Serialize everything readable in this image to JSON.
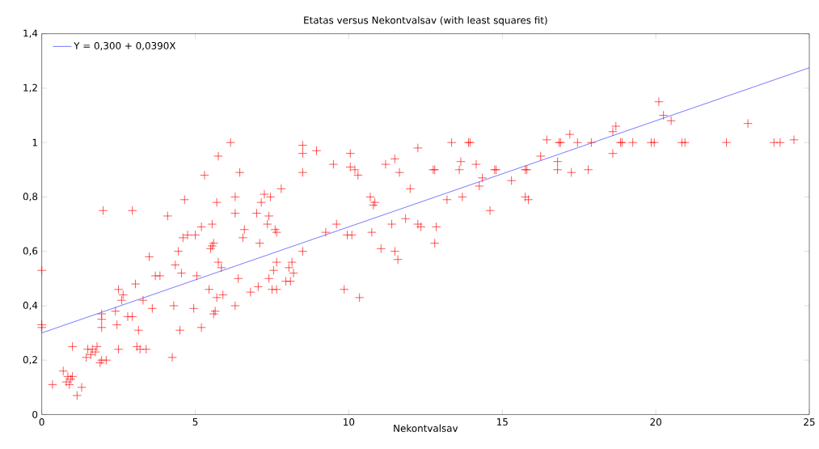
{
  "chart_data": {
    "type": "scatter",
    "title": "Etatas versus Nekontvalsav (with least squares fit)",
    "xlabel": "Nekontvalsav",
    "xlim": [
      0,
      25
    ],
    "ylim": [
      0,
      1.4
    ],
    "xticks": [
      0,
      5,
      10,
      15,
      20,
      25
    ],
    "yticks": [
      {
        "value": 0,
        "label": "0"
      },
      {
        "value": 0.2,
        "label": "0,2"
      },
      {
        "value": 0.4,
        "label": "0,4"
      },
      {
        "value": 0.6,
        "label": "0,6"
      },
      {
        "value": 0.8,
        "label": "0,8"
      },
      {
        "value": 1,
        "label": "1"
      },
      {
        "value": 1.2,
        "label": "1,2"
      },
      {
        "value": 1.4,
        "label": "1,4"
      }
    ],
    "grid": false,
    "legend": "top left",
    "series": [
      {
        "color": "#ff0000",
        "marker": "cross",
        "x": [
          0,
          0,
          0,
          0.35,
          0.7,
          0.8,
          0.85,
          0.9,
          0.95,
          1.0,
          1.0,
          1.15,
          1.3,
          1.45,
          1.5,
          1.6,
          1.65,
          1.75,
          1.8,
          1.9,
          1.95,
          1.95,
          1.95,
          1.95,
          2.0,
          2.1,
          2.5,
          2.45,
          2.4,
          2.5,
          2.6,
          2.65,
          2.8,
          2.95,
          2.95,
          3.05,
          3.1,
          3.15,
          3.2,
          3.4,
          3.3,
          3.5,
          3.6,
          3.7,
          3.85,
          4.1,
          4.25,
          4.3,
          4.35,
          4.45,
          4.5,
          4.55,
          4.6,
          4.65,
          4.75,
          4.95,
          5.0,
          5.05,
          5.2,
          5.2,
          5.3,
          5.45,
          5.5,
          5.55,
          5.55,
          5.6,
          5.6,
          5.65,
          5.7,
          5.7,
          5.75,
          5.75,
          5.85,
          5.9,
          6.15,
          6.3,
          6.3,
          6.3,
          6.4,
          6.45,
          6.55,
          6.6,
          6.8,
          7.0,
          7.05,
          7.1,
          7.15,
          7.25,
          7.35,
          7.4,
          7.4,
          7.45,
          7.5,
          7.55,
          7.6,
          7.65,
          7.65,
          7.65,
          7.8,
          7.95,
          8.05,
          8.1,
          8.15,
          8.2,
          8.5,
          8.5,
          8.5,
          8.5,
          8.95,
          9.25,
          9.5,
          9.6,
          9.85,
          9.95,
          10.05,
          10.05,
          10.1,
          10.2,
          10.3,
          10.35,
          10.7,
          10.75,
          10.8,
          10.85,
          11.05,
          11.2,
          11.4,
          11.5,
          11.5,
          11.6,
          11.65,
          11.85,
          12.0,
          12.25,
          12.25,
          12.35,
          12.75,
          12.8,
          12.8,
          12.85,
          13.2,
          13.35,
          13.6,
          13.65,
          13.7,
          13.9,
          13.95,
          14.15,
          14.25,
          14.35,
          14.6,
          14.75,
          14.8,
          15.3,
          15.75,
          15.75,
          15.8,
          15.85,
          16.25,
          16.45,
          16.8,
          16.8,
          16.85,
          16.9,
          17.2,
          17.25,
          17.45,
          17.8,
          17.9,
          18.6,
          18.6,
          18.7,
          18.85,
          18.9,
          19.25,
          19.85,
          19.95,
          20.1,
          20.25,
          20.5,
          20.85,
          20.95,
          22.3,
          23.0,
          23.85,
          24.05,
          24.5
        ],
        "values": [
          0.53,
          0.33,
          0.32,
          0.11,
          0.16,
          0.12,
          0.14,
          0.11,
          0.13,
          0.14,
          0.25,
          0.07,
          0.1,
          0.21,
          0.24,
          0.22,
          0.24,
          0.23,
          0.25,
          0.19,
          0.2,
          0.32,
          0.35,
          0.37,
          0.75,
          0.2,
          0.24,
          0.33,
          0.38,
          0.46,
          0.42,
          0.44,
          0.36,
          0.36,
          0.75,
          0.48,
          0.25,
          0.31,
          0.24,
          0.24,
          0.42,
          0.58,
          0.39,
          0.51,
          0.51,
          0.73,
          0.21,
          0.4,
          0.55,
          0.6,
          0.31,
          0.52,
          0.65,
          0.79,
          0.66,
          0.39,
          0.66,
          0.51,
          0.69,
          0.32,
          0.88,
          0.46,
          0.61,
          0.62,
          0.7,
          0.37,
          0.63,
          0.38,
          0.43,
          0.78,
          0.95,
          0.56,
          0.54,
          0.44,
          1.0,
          0.8,
          0.74,
          0.4,
          0.5,
          0.89,
          0.65,
          0.68,
          0.45,
          0.74,
          0.47,
          0.63,
          0.78,
          0.81,
          0.7,
          0.73,
          0.5,
          0.8,
          0.46,
          0.53,
          0.68,
          0.67,
          0.56,
          0.46,
          0.83,
          0.49,
          0.54,
          0.49,
          0.56,
          0.52,
          0.89,
          0.96,
          0.99,
          0.6,
          0.97,
          0.67,
          0.92,
          0.7,
          0.46,
          0.66,
          0.91,
          0.96,
          0.66,
          0.9,
          0.88,
          0.43,
          0.8,
          0.67,
          0.77,
          0.78,
          0.61,
          0.92,
          0.7,
          0.94,
          0.6,
          0.57,
          0.89,
          0.72,
          0.83,
          0.98,
          0.7,
          0.69,
          0.9,
          0.9,
          0.63,
          0.69,
          0.79,
          1.0,
          0.9,
          0.93,
          0.8,
          1.0,
          1.0,
          0.92,
          0.84,
          0.87,
          0.75,
          0.9,
          0.9,
          0.86,
          0.8,
          0.9,
          0.9,
          0.79,
          0.95,
          1.01,
          0.9,
          0.93,
          1.0,
          1.0,
          1.03,
          0.89,
          1.0,
          0.9,
          1.0,
          0.96,
          1.04,
          1.06,
          1.0,
          1.0,
          1.0,
          1.0,
          1.0,
          1.15,
          1.1,
          1.08,
          1.0,
          1.0,
          1.0,
          1.07,
          1.0,
          1.0,
          1.01
        ]
      },
      {
        "type": "line",
        "name": "Y = 0,300 + 0,0390X",
        "color": "#0000ff",
        "marker": "none",
        "line_style": "solid",
        "x": [
          0,
          25
        ],
        "values": [
          0.3,
          1.275
        ]
      }
    ]
  }
}
